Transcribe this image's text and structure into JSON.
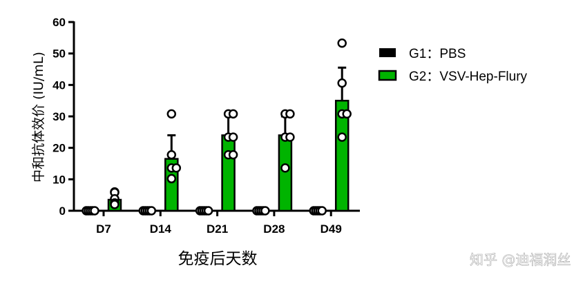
{
  "chart_data": {
    "type": "bar",
    "xlabel": "免疫后天数",
    "ylabel": "中和抗体效价 (IU/mL)",
    "ylim": [
      0,
      60
    ],
    "yticks": [
      0,
      10,
      20,
      30,
      40,
      50,
      60
    ],
    "categories": [
      "D7",
      "D14",
      "D21",
      "D28",
      "D49"
    ],
    "legend_position": "right",
    "series": [
      {
        "name": "G1：PBS",
        "color": "#000000",
        "values": [
          0,
          0,
          0,
          0,
          0
        ],
        "error_upper": [
          0,
          0,
          0,
          0,
          0
        ],
        "points": [
          [
            0,
            0,
            0,
            0,
            0
          ],
          [
            0,
            0,
            0,
            0,
            0
          ],
          [
            0,
            0,
            0,
            0,
            0
          ],
          [
            0,
            0,
            0,
            0,
            0
          ],
          [
            0,
            0,
            0,
            0,
            0
          ]
        ]
      },
      {
        "name": "G2：VSV-Hep-Flury",
        "color": "#00b400",
        "values": [
          3.5,
          16.5,
          24,
          24,
          35
        ],
        "error_upper": [
          5.5,
          24,
          30.5,
          30,
          45.5
        ],
        "points": [
          [
            6,
            5.8,
            3.8,
            2.5,
            2
          ],
          [
            30.8,
            17.8,
            13.6,
            13.6,
            10.2
          ],
          [
            30.8,
            30.8,
            23.4,
            23.4,
            17.8,
            17.8
          ],
          [
            30.8,
            30.8,
            23.4,
            23.4,
            13.6
          ],
          [
            53.3,
            40.6,
            30.8,
            30.8,
            23.4
          ]
        ]
      }
    ]
  },
  "watermark": "知乎 @迪福润丝"
}
